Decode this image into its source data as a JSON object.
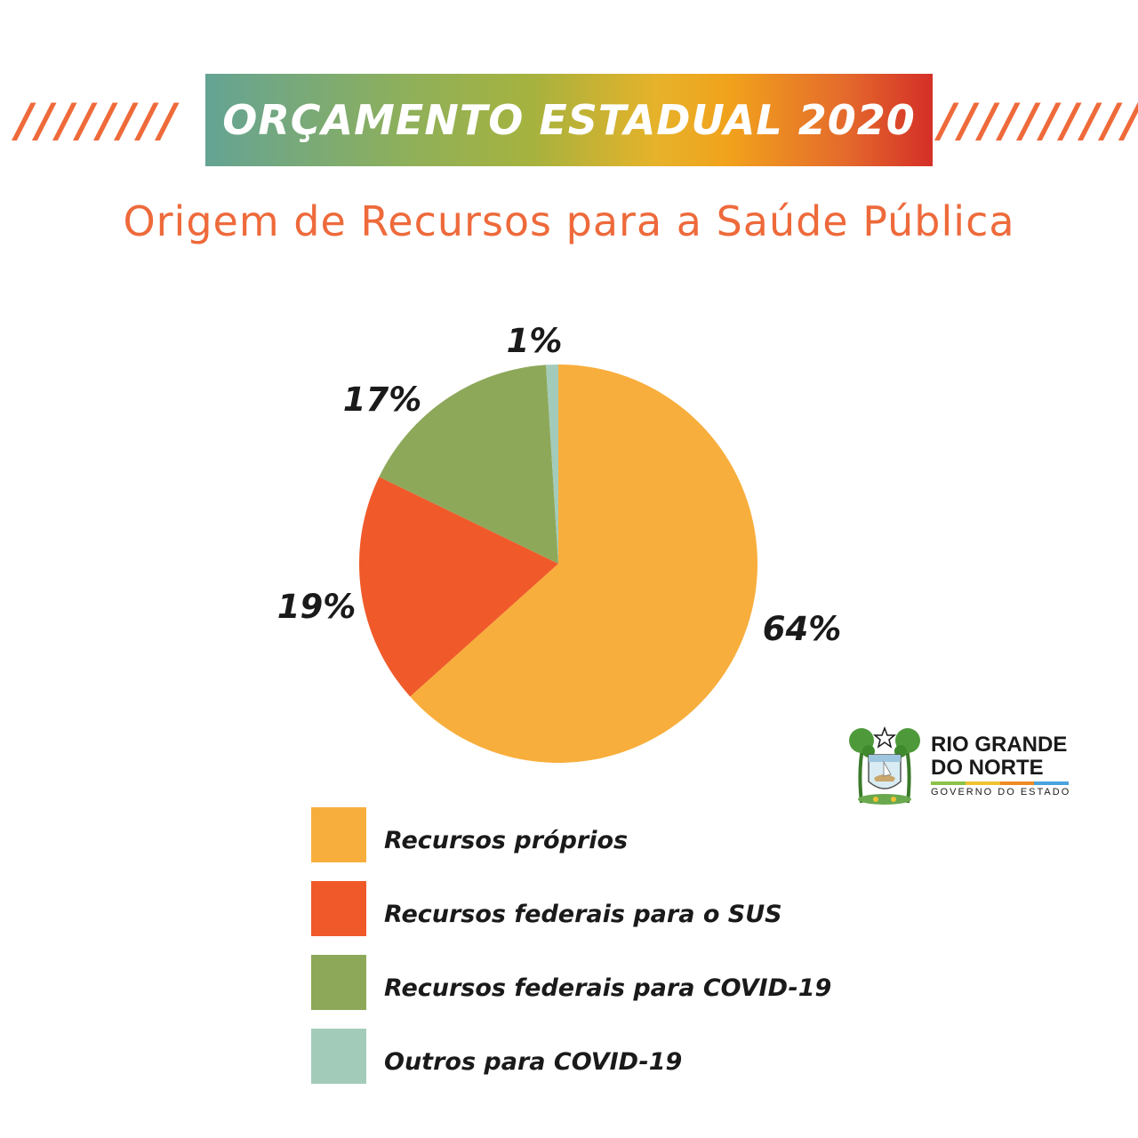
{
  "header": {
    "title": "ORÇAMENTO ESTADUAL 2020",
    "slashes_left": "////////",
    "slashes_right": "///////////"
  },
  "subtitle": "Origem de Recursos para a Saúde Pública",
  "chart_data": {
    "type": "pie",
    "title": "Origem de Recursos para a Saúde Pública",
    "categories": [
      "Recursos próprios",
      "Recursos federais para o SUS",
      "Recursos federais para COVID-19",
      "Outros para COVID-19"
    ],
    "values": [
      64,
      19,
      17,
      1
    ],
    "labels": [
      "64%",
      "19%",
      "17%",
      "1%"
    ],
    "colors": [
      "#f8ae3c",
      "#f05a2a",
      "#8ea85a",
      "#a3cbb9"
    ],
    "legend_position": "bottom"
  },
  "legend": {
    "items": [
      {
        "label": "Recursos próprios",
        "color": "#f8ae3c"
      },
      {
        "label": "Recursos federais para o SUS",
        "color": "#f05a2a"
      },
      {
        "label": "Recursos federais para COVID-19",
        "color": "#8ea85a"
      },
      {
        "label": "Outros para COVID-19",
        "color": "#a3cbb9"
      }
    ]
  },
  "logo": {
    "line1": "RIO GRANDE",
    "line2": "DO NORTE",
    "line3": "GOVERNO DO ESTADO",
    "icon": "state-coat-of-arms-icon"
  }
}
